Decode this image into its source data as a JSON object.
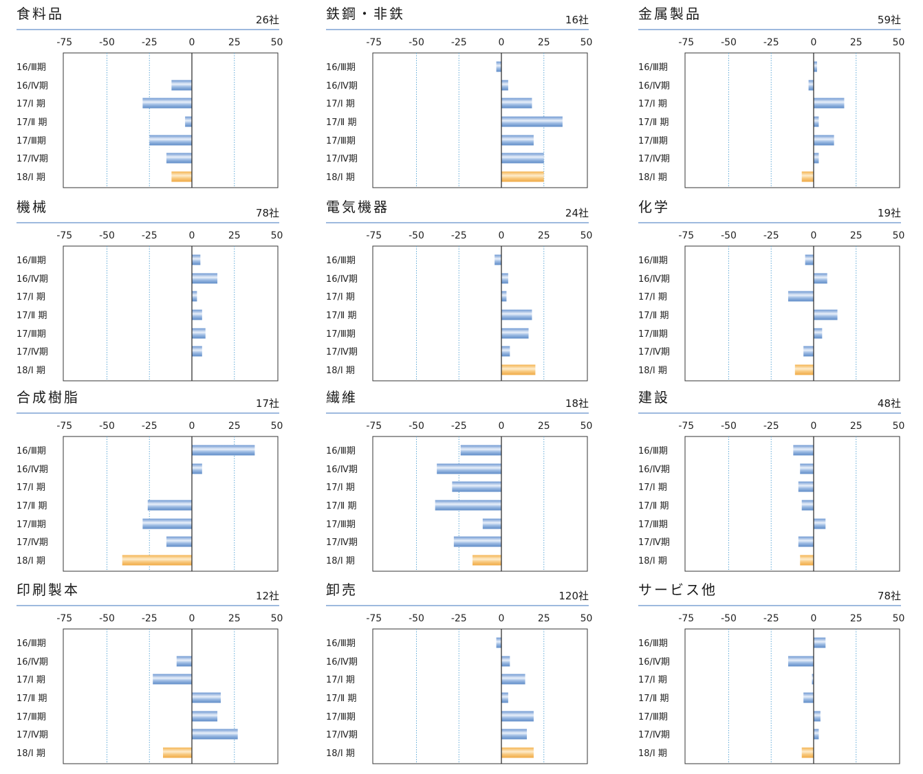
{
  "x_ticks": [
    "-75",
    "-50",
    "-25",
    "0",
    "25",
    "50"
  ],
  "categories": [
    "16/Ⅲ期",
    "16/Ⅳ期",
    "17/Ⅰ 期",
    "17/Ⅱ 期",
    "17/Ⅲ期",
    "17/Ⅳ期",
    "18/Ⅰ 期"
  ],
  "colors": {
    "actual": "#7ea6da",
    "forecast": "#f6c06a",
    "rule": "#9db9de",
    "grid": "#5fa8d6"
  },
  "chart_data": [
    {
      "type": "bar",
      "orientation": "horizontal",
      "title": "食料品",
      "count": "26社",
      "xlim": [
        -75,
        50
      ],
      "categories": [
        "16/Ⅲ期",
        "16/Ⅳ期",
        "17/Ⅰ 期",
        "17/Ⅱ 期",
        "17/Ⅲ期",
        "17/Ⅳ期",
        "18/Ⅰ 期"
      ],
      "values": [
        null,
        -12,
        -29,
        -4,
        -25,
        -15,
        -12
      ]
    },
    {
      "type": "bar",
      "orientation": "horizontal",
      "title": "鉄鋼・非鉄",
      "count": "16社",
      "xlim": [
        -75,
        50
      ],
      "categories": [
        "16/Ⅲ期",
        "16/Ⅳ期",
        "17/Ⅰ 期",
        "17/Ⅱ 期",
        "17/Ⅲ期",
        "17/Ⅳ期",
        "18/Ⅰ 期"
      ],
      "values": [
        -3,
        4,
        18,
        36,
        19,
        25,
        25
      ]
    },
    {
      "type": "bar",
      "orientation": "horizontal",
      "title": "金属製品",
      "count": "59社",
      "xlim": [
        -75,
        50
      ],
      "categories": [
        "16/Ⅲ期",
        "16/Ⅳ期",
        "17/Ⅰ 期",
        "17/Ⅱ 期",
        "17/Ⅲ期",
        "17/Ⅳ期",
        "18/Ⅰ 期"
      ],
      "values": [
        2,
        -3,
        18,
        3,
        12,
        3,
        -7
      ]
    },
    {
      "type": "bar",
      "orientation": "horizontal",
      "title": "機械",
      "count": "78社",
      "xlim": [
        -75,
        50
      ],
      "categories": [
        "16/Ⅲ期",
        "16/Ⅳ期",
        "17/Ⅰ 期",
        "17/Ⅱ 期",
        "17/Ⅲ期",
        "17/Ⅳ期",
        "18/Ⅰ 期"
      ],
      "values": [
        5,
        15,
        3,
        6,
        8,
        6,
        null
      ]
    },
    {
      "type": "bar",
      "orientation": "horizontal",
      "title": "電気機器",
      "count": "24社",
      "xlim": [
        -75,
        50
      ],
      "categories": [
        "16/Ⅲ期",
        "16/Ⅳ期",
        "17/Ⅰ 期",
        "17/Ⅱ 期",
        "17/Ⅲ期",
        "17/Ⅳ期",
        "18/Ⅰ 期"
      ],
      "values": [
        -4,
        4,
        3,
        18,
        16,
        5,
        20
      ]
    },
    {
      "type": "bar",
      "orientation": "horizontal",
      "title": "化学",
      "count": "19社",
      "xlim": [
        -75,
        50
      ],
      "categories": [
        "16/Ⅲ期",
        "16/Ⅳ期",
        "17/Ⅰ 期",
        "17/Ⅱ 期",
        "17/Ⅲ期",
        "17/Ⅳ期",
        "18/Ⅰ 期"
      ],
      "values": [
        -5,
        8,
        -15,
        14,
        5,
        -6,
        -11
      ]
    },
    {
      "type": "bar",
      "orientation": "horizontal",
      "title": "合成樹脂",
      "count": "17社",
      "xlim": [
        -75,
        50
      ],
      "categories": [
        "16/Ⅲ期",
        "16/Ⅳ期",
        "17/Ⅰ 期",
        "17/Ⅱ 期",
        "17/Ⅲ期",
        "17/Ⅳ期",
        "18/Ⅰ 期"
      ],
      "values": [
        37,
        6,
        null,
        -26,
        -29,
        -15,
        -41
      ]
    },
    {
      "type": "bar",
      "orientation": "horizontal",
      "title": "繊維",
      "count": "18社",
      "xlim": [
        -75,
        50
      ],
      "categories": [
        "16/Ⅲ期",
        "16/Ⅳ期",
        "17/Ⅰ 期",
        "17/Ⅱ 期",
        "17/Ⅲ期",
        "17/Ⅳ期",
        "18/Ⅰ 期"
      ],
      "values": [
        -24,
        -38,
        -29,
        -39,
        -11,
        -28,
        -17
      ]
    },
    {
      "type": "bar",
      "orientation": "horizontal",
      "title": "建設",
      "count": "48社",
      "xlim": [
        -75,
        50
      ],
      "categories": [
        "16/Ⅲ期",
        "16/Ⅳ期",
        "17/Ⅰ 期",
        "17/Ⅱ 期",
        "17/Ⅲ期",
        "17/Ⅳ期",
        "18/Ⅰ 期"
      ],
      "values": [
        -12,
        -8,
        -9,
        -7,
        7,
        -9,
        -8
      ]
    },
    {
      "type": "bar",
      "orientation": "horizontal",
      "title": "印刷製本",
      "count": "12社",
      "xlim": [
        -75,
        50
      ],
      "categories": [
        "16/Ⅲ期",
        "16/Ⅳ期",
        "17/Ⅰ 期",
        "17/Ⅱ 期",
        "17/Ⅲ期",
        "17/Ⅳ期",
        "18/Ⅰ 期"
      ],
      "values": [
        null,
        -9,
        -23,
        17,
        15,
        27,
        -17
      ]
    },
    {
      "type": "bar",
      "orientation": "horizontal",
      "title": "卸売",
      "count": "120社",
      "xlim": [
        -75,
        50
      ],
      "categories": [
        "16/Ⅲ期",
        "16/Ⅳ期",
        "17/Ⅰ 期",
        "17/Ⅱ 期",
        "17/Ⅲ期",
        "17/Ⅳ期",
        "18/Ⅰ 期"
      ],
      "values": [
        -3,
        5,
        14,
        4,
        19,
        15,
        19
      ]
    },
    {
      "type": "bar",
      "orientation": "horizontal",
      "title": "サービス他",
      "count": "78社",
      "xlim": [
        -75,
        50
      ],
      "categories": [
        "16/Ⅲ期",
        "16/Ⅳ期",
        "17/Ⅰ 期",
        "17/Ⅱ 期",
        "17/Ⅲ期",
        "17/Ⅳ期",
        "18/Ⅰ 期"
      ],
      "values": [
        7,
        -15,
        -1,
        -6,
        4,
        3,
        -7
      ]
    }
  ]
}
